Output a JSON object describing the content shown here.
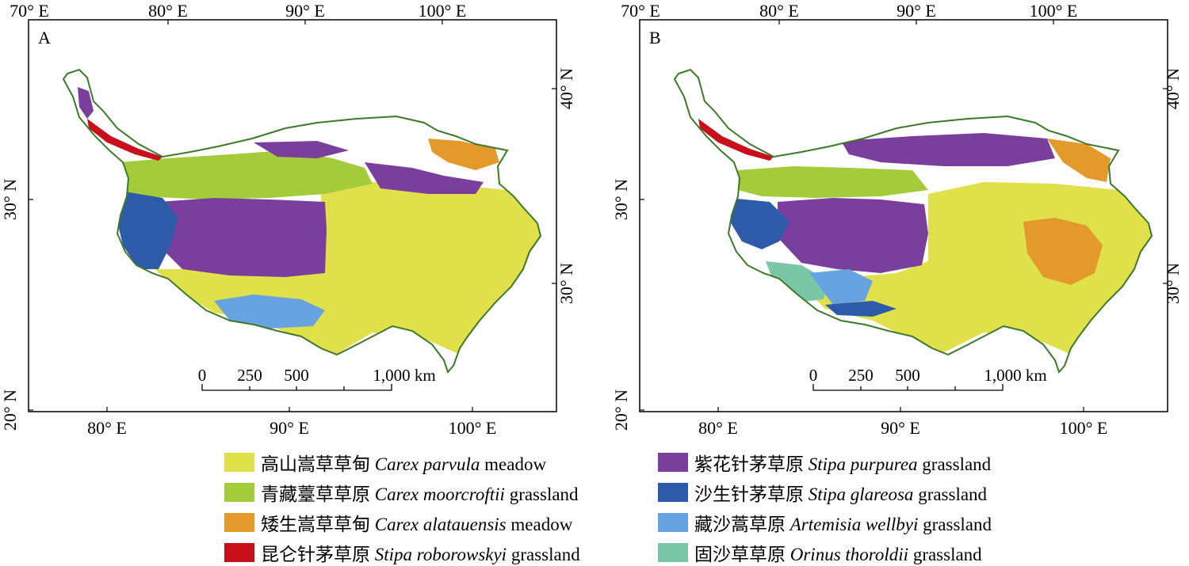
{
  "panels": [
    {
      "label": "A",
      "top_ticks": [
        "70° E",
        "80° E",
        "90° E",
        "100° E"
      ],
      "bottom_ticks": [
        "80° E",
        "90° E",
        "100° E"
      ],
      "left_ticks": [
        "30° N",
        "20° N"
      ],
      "right_ticks": [
        "40° N",
        "30° N"
      ],
      "scale": {
        "labels": [
          "0",
          "250",
          "500",
          "1,000 km"
        ]
      }
    },
    {
      "label": "B",
      "top_ticks": [
        "70° E",
        "80° E",
        "90° E",
        "100° E"
      ],
      "bottom_ticks": [
        "80° E",
        "90° E",
        "100° E"
      ],
      "left_ticks": [
        "30° N",
        "20° N"
      ],
      "right_ticks": [
        "40° N",
        "30° N"
      ],
      "scale": {
        "labels": [
          "0",
          "250",
          "500",
          "1,000 km"
        ]
      }
    }
  ],
  "legend": [
    {
      "cn": "高山嵩草草甸",
      "latin": "Carex parvula",
      "type": "meadow",
      "color": "#dfe04a"
    },
    {
      "cn": "青藏薹草草原",
      "latin": "Carex moorcroftii",
      "type": "grassland",
      "color": "#a4cc3a"
    },
    {
      "cn": "矮生嵩草草甸",
      "latin": "Carex alatauensis",
      "type": "meadow",
      "color": "#e39a2a"
    },
    {
      "cn": "昆仑针茅草原",
      "latin": "Stipa roborowskyi",
      "type": "grassland",
      "color": "#c8101c"
    },
    {
      "cn": "紫花针茅草原",
      "latin": "Stipa purpurea",
      "type": "grassland",
      "color": "#7a3f9d"
    },
    {
      "cn": "沙生针茅草原",
      "latin": "Stipa glareosa",
      "type": "grassland",
      "color": "#2e5aaa"
    },
    {
      "cn": "藏沙蒿草原",
      "latin": "Artemisia wellbyi",
      "type": "grassland",
      "color": "#66a3e0"
    },
    {
      "cn": "固沙草草原",
      "latin": "Orinus thoroldii",
      "type": "grassland",
      "color": "#7cc6a8"
    }
  ],
  "boundary_color": "#3c7a2a"
}
